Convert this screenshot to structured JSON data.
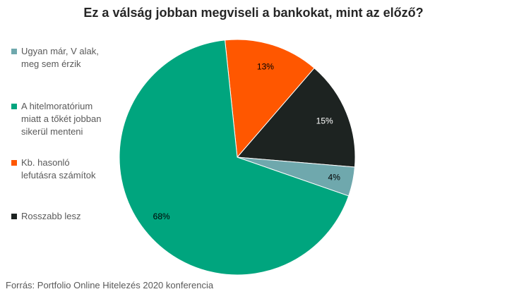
{
  "chart_data": {
    "type": "pie",
    "title": "Ez a válság jobban megviseli a bankokat, mint az előző?",
    "slices": [
      {
        "label": "Ugyan már, V alak,\nmeg sem érzik",
        "value": 4,
        "value_label": "4%",
        "color": "#6fa8ad"
      },
      {
        "label": "A hitelmoratórium\nmiatt a tőkét jobban\nsikerül menteni",
        "value": 68,
        "value_label": "68%",
        "color": "#00a57e"
      },
      {
        "label": "Kb. hasonló\nlefutásra számítok",
        "value": 13,
        "value_label": "13%",
        "color": "#ff5700"
      },
      {
        "label": "Rosszabb lesz",
        "value": 15,
        "value_label": "15%",
        "color": "#1d2321"
      }
    ],
    "legend_position": "left",
    "source": "Forrás: Portfolio Online Hitelezés 2020 konferencia"
  }
}
